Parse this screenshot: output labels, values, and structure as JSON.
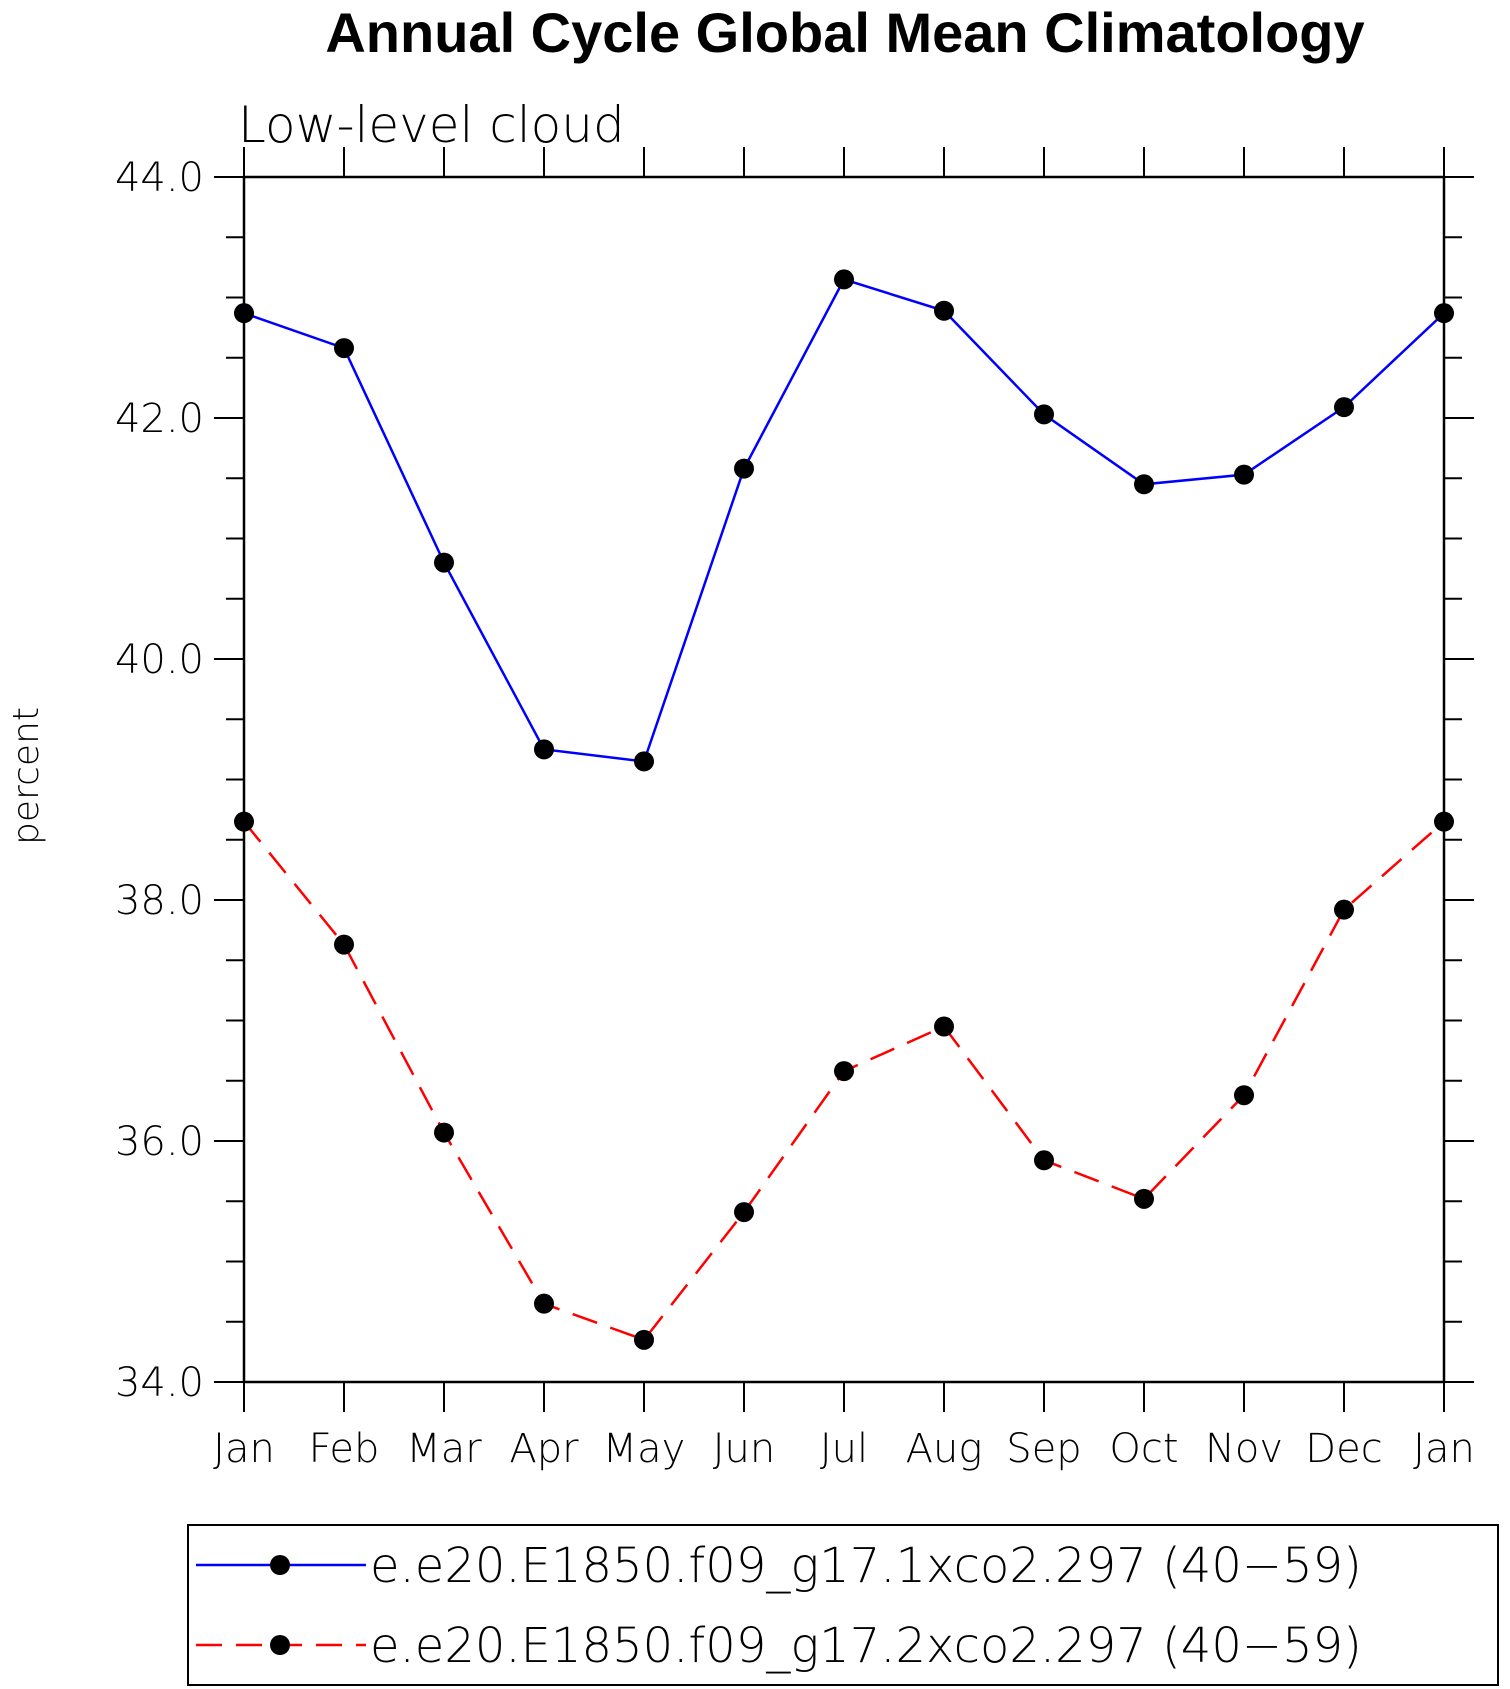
{
  "chart_data": {
    "type": "line",
    "title": "Annual Cycle Global Mean Climatology",
    "subtitle": "Low-level cloud",
    "ylabel": "percent",
    "xlabel": "",
    "ylim": [
      34.0,
      44.0
    ],
    "yticks": [
      "34.0",
      "36.0",
      "38.0",
      "40.0",
      "42.0",
      "44.0"
    ],
    "yticks_values": [
      34,
      36,
      38,
      40,
      42,
      44
    ],
    "categories": [
      "Jan",
      "Feb",
      "Mar",
      "Apr",
      "May",
      "Jun",
      "Jul",
      "Aug",
      "Sep",
      "Oct",
      "Nov",
      "Dec",
      "Jan"
    ],
    "series": [
      {
        "name": "e.e20.E1850.f09_g17.1xco2.297 (40−59)",
        "color": "#0000ff",
        "dash": "solid",
        "values": [
          42.87,
          42.58,
          40.8,
          39.25,
          39.15,
          41.58,
          43.15,
          42.89,
          42.03,
          41.45,
          41.53,
          42.09,
          42.87
        ]
      },
      {
        "name": "e.e20.E1850.f09_g17.2xco2.297 (40−59)",
        "color": "#ff0000",
        "dash": "dashed",
        "values": [
          38.65,
          37.63,
          36.07,
          34.65,
          34.35,
          35.41,
          36.58,
          36.95,
          35.84,
          35.52,
          36.38,
          37.92,
          38.65
        ]
      }
    ],
    "grid": false,
    "legend_position": "bottom"
  }
}
